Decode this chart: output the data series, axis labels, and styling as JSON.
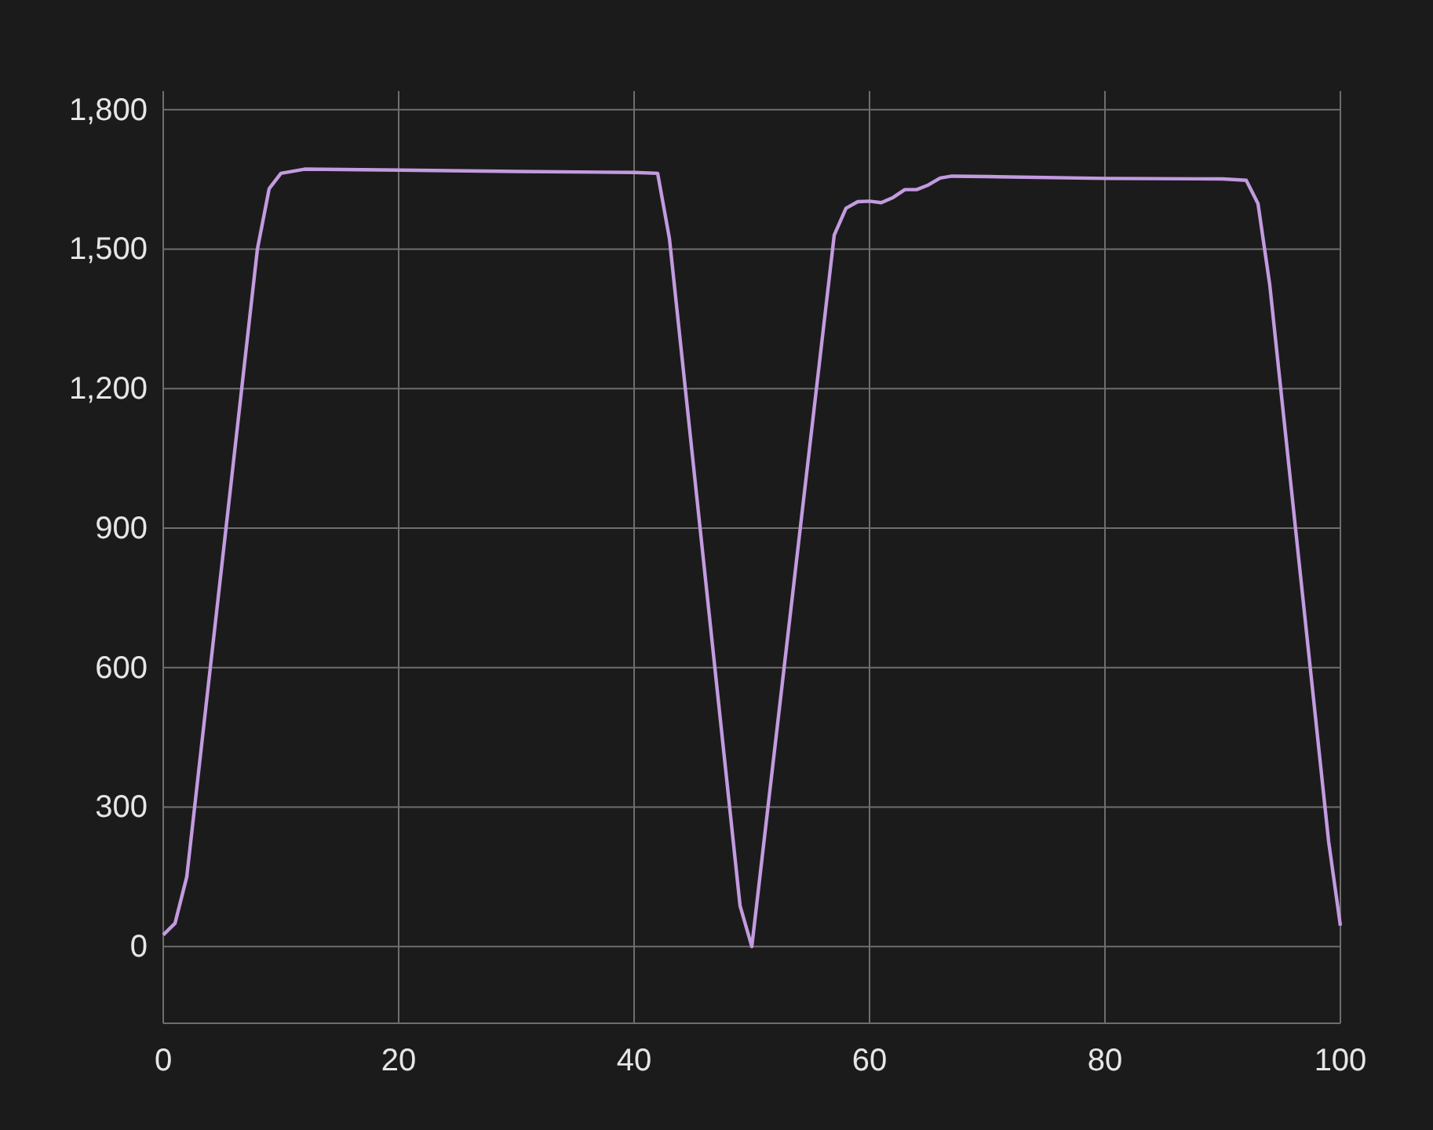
{
  "chart_data": {
    "type": "line",
    "x": [
      0,
      1,
      2,
      8,
      9,
      10,
      12,
      20,
      30,
      40,
      42,
      43,
      49,
      50,
      57,
      58,
      59,
      60,
      61,
      62,
      63,
      64,
      65,
      66,
      67,
      70,
      80,
      90,
      92,
      93,
      94,
      99,
      100
    ],
    "series": [
      {
        "color": "#c39be0",
        "values": [
          25,
          50,
          150,
          1500,
          1630,
          1663,
          1672,
          1670,
          1667,
          1665,
          1663,
          1523,
          88,
          0,
          1530,
          1588,
          1602,
          1603,
          1600,
          1611,
          1628,
          1628,
          1638,
          1653,
          1657,
          1656,
          1652,
          1651,
          1648,
          1598,
          1423,
          226,
          45
        ]
      }
    ],
    "xlim": [
      0,
      100
    ],
    "xticks": [
      0,
      20,
      40,
      60,
      80,
      100
    ],
    "ylim": [
      -165,
      1840
    ],
    "yticks": [
      {
        "value": 0,
        "label": "0"
      },
      {
        "value": 300,
        "label": "300"
      },
      {
        "value": 600,
        "label": "600"
      },
      {
        "value": 900,
        "label": "900"
      },
      {
        "value": 1200,
        "label": "1,200"
      },
      {
        "value": 1500,
        "label": "1,500"
      },
      {
        "value": 1800,
        "label": "1,800"
      }
    ],
    "grid": true,
    "line_style": "solid",
    "marker": "none"
  }
}
